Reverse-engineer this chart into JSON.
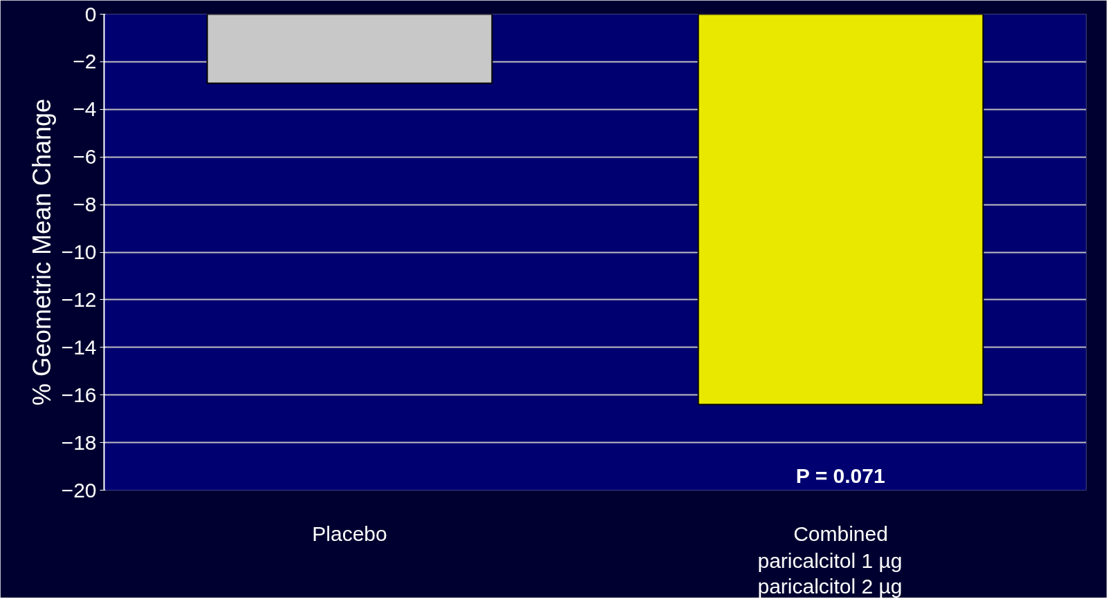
{
  "chart_data": {
    "type": "bar",
    "ylabel": "% Geometric Mean Change",
    "categories": [
      "Placebo",
      "Combined"
    ],
    "values": [
      -2.9,
      -16.4
    ],
    "colors": [
      "#c8c8c8",
      "#e8e800"
    ],
    "ylim": [
      -20,
      0
    ],
    "yticks": [
      0,
      -2,
      -4,
      -6,
      -8,
      -10,
      -12,
      -14,
      -16,
      -18,
      -20
    ],
    "grid": "y",
    "annotations": [
      "P = 0.071",
      "paricalcitol 1 µg",
      "paricalcitol 2 µg"
    ]
  }
}
